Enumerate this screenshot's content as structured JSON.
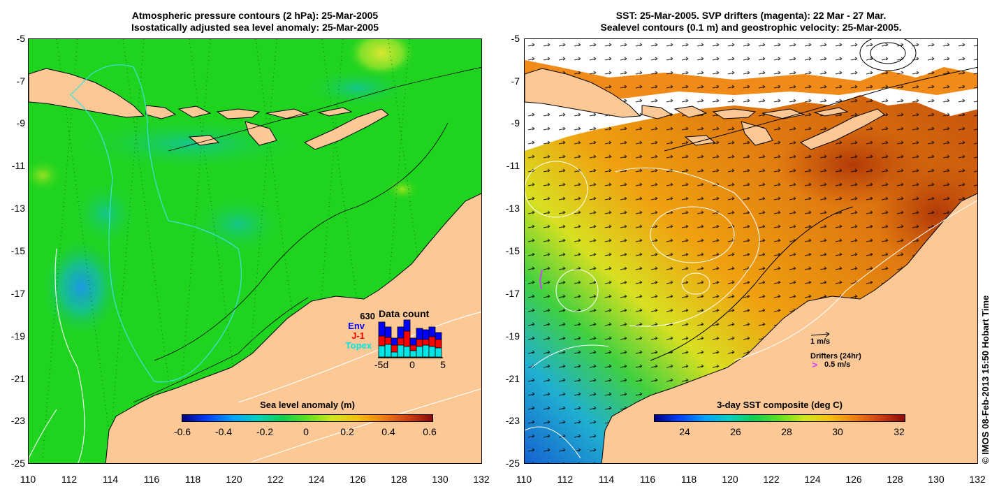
{
  "left_panel": {
    "title_line1": "Atmospheric pressure contours (2 hPa): 25-Mar-2005",
    "title_line2": "Isostatically adjusted sea level anomaly: 25-Mar-2005",
    "colorbar_label": "Sea level anomaly (m)",
    "colorbar_ticks": [
      "-0.6",
      "-0.4",
      "-0.2",
      "0",
      "0.2",
      "0.4",
      "0.6"
    ],
    "data_count": {
      "title": "Data count",
      "total": "630",
      "sources": [
        {
          "label": "Env",
          "color": "#0000ff"
        },
        {
          "label": "J-1",
          "color": "#ff0000"
        },
        {
          "label": "Topex",
          "color": "#00e5e5"
        }
      ],
      "x_ticks": [
        "-5d",
        "0",
        "5"
      ]
    }
  },
  "right_panel": {
    "title_line1": "SST: 25-Mar-2005. SVP drifters (magenta): 22 Mar - 27 Mar.",
    "title_line2": "Sealevel contours (0.1 m) and geostrophic velocity: 25-Mar-2005.",
    "colorbar_label": "3-day SST composite (deg C)",
    "colorbar_ticks": [
      "24",
      "26",
      "28",
      "30",
      "32"
    ],
    "velocity_scale_label": "1 m/s",
    "drifters_label": "Drifters (24hr)",
    "drifters_symbol": ">",
    "drifters_scale_label": "0.5 m/s"
  },
  "axes": {
    "y_ticks": [
      "-5",
      "-7",
      "-9",
      "-11",
      "-13",
      "-15",
      "-17",
      "-19",
      "-21",
      "-23",
      "-25"
    ],
    "x_ticks": [
      "110",
      "112",
      "114",
      "116",
      "118",
      "120",
      "122",
      "124",
      "126",
      "128",
      "130",
      "132"
    ]
  },
  "copyright": "© IMOS 08-Feb-2013 15:50 Hobart Time",
  "colors": {
    "land": "#fcc896",
    "left_sea": "#1fd41f",
    "sst_warm": "#e07a10",
    "sst_hot": "#b8400a"
  }
}
